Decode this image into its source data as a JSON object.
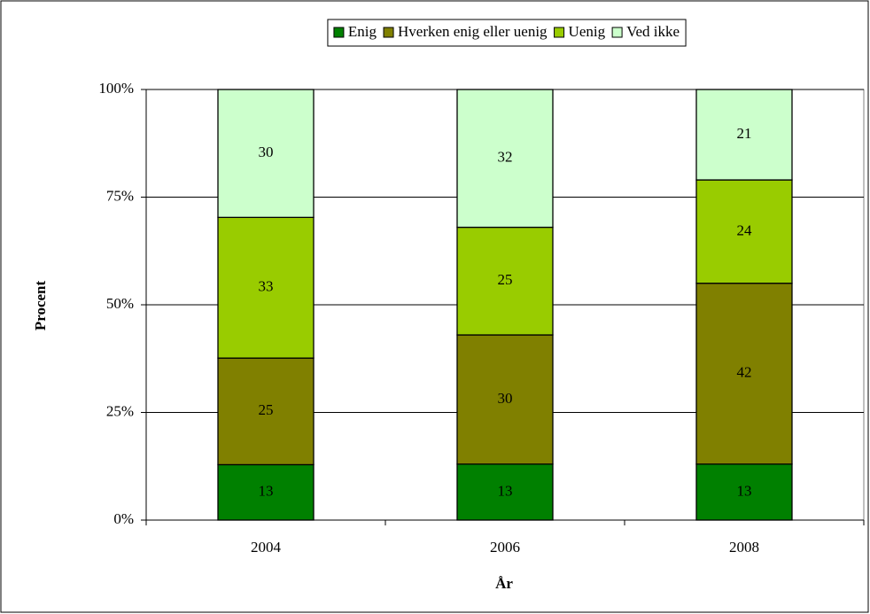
{
  "chart_data": {
    "type": "bar",
    "stacked": "percent",
    "x_label": "År",
    "y_label": "Procent",
    "categories": [
      "2004",
      "2006",
      "2008"
    ],
    "series": [
      {
        "name": "Enig",
        "color": "#008000",
        "values": [
          13,
          13,
          13
        ]
      },
      {
        "name": "Hverken enig eller uenig",
        "color": "#808000",
        "values": [
          25,
          30,
          42
        ]
      },
      {
        "name": "Uenig",
        "color": "#99cc00",
        "values": [
          33,
          25,
          24
        ]
      },
      {
        "name": "Ved ikke",
        "color": "#ccffcc",
        "values": [
          30,
          32,
          21
        ]
      }
    ],
    "ylim": [
      0,
      100
    ],
    "yticks": [
      {
        "value": 0,
        "label": "0%"
      },
      {
        "value": 25,
        "label": "25%"
      },
      {
        "value": 50,
        "label": "50%"
      },
      {
        "value": 75,
        "label": "75%"
      },
      {
        "value": 100,
        "label": "100%"
      }
    ],
    "grid": true,
    "legend": "top"
  }
}
